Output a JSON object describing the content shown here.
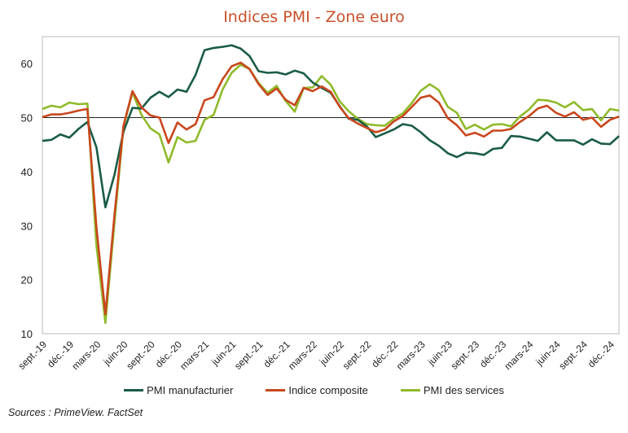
{
  "chart_data": {
    "type": "line",
    "title": "Indices PMI - Zone euro",
    "xlabel": "",
    "ylabel": "",
    "ylim": [
      10,
      65
    ],
    "yticks": [
      10,
      20,
      30,
      40,
      50,
      60
    ],
    "reference_line": 50,
    "grid": false,
    "legend_position": "bottom",
    "x_tick_labels": [
      "sept.-19",
      "déc.-19",
      "mars-20",
      "juin-20",
      "sept.-20",
      "déc.-20",
      "mars-21",
      "juin-21",
      "sept.-21",
      "déc.-21",
      "mars-22",
      "juin-22",
      "sept.-22",
      "déc.-22",
      "mars-23",
      "juin-23",
      "sept.-23",
      "déc.-23",
      "mars-24",
      "juin-24",
      "sept.-24",
      "déc.-24"
    ],
    "x": [
      "2019-09",
      "2019-10",
      "2019-11",
      "2019-12",
      "2020-01",
      "2020-02",
      "2020-03",
      "2020-04",
      "2020-05",
      "2020-06",
      "2020-07",
      "2020-08",
      "2020-09",
      "2020-10",
      "2020-11",
      "2020-12",
      "2021-01",
      "2021-02",
      "2021-03",
      "2021-04",
      "2021-05",
      "2021-06",
      "2021-07",
      "2021-08",
      "2021-09",
      "2021-10",
      "2021-11",
      "2021-12",
      "2022-01",
      "2022-02",
      "2022-03",
      "2022-04",
      "2022-05",
      "2022-06",
      "2022-07",
      "2022-08",
      "2022-09",
      "2022-10",
      "2022-11",
      "2022-12",
      "2023-01",
      "2023-02",
      "2023-03",
      "2023-04",
      "2023-05",
      "2023-06",
      "2023-07",
      "2023-08",
      "2023-09",
      "2023-10",
      "2023-11",
      "2023-12",
      "2024-01",
      "2024-02",
      "2024-03",
      "2024-04",
      "2024-05",
      "2024-06",
      "2024-07",
      "2024-08",
      "2024-09",
      "2024-10",
      "2024-11",
      "2024-12",
      "2025-01"
    ],
    "series": [
      {
        "name": "PMI manufacturier",
        "color": "#1a5c45",
        "values": [
          45.7,
          45.9,
          46.9,
          46.3,
          47.9,
          49.2,
          44.5,
          33.4,
          39.4,
          47.4,
          51.8,
          51.7,
          53.7,
          54.8,
          53.8,
          55.2,
          54.8,
          57.9,
          62.5,
          62.9,
          63.1,
          63.4,
          62.8,
          61.4,
          58.6,
          58.3,
          58.4,
          58.0,
          58.7,
          58.2,
          56.5,
          55.5,
          54.6,
          52.1,
          49.8,
          49.6,
          48.4,
          46.4,
          47.1,
          47.8,
          48.8,
          48.5,
          47.3,
          45.8,
          44.8,
          43.4,
          42.7,
          43.5,
          43.4,
          43.1,
          44.2,
          44.4,
          46.6,
          46.5,
          46.1,
          45.7,
          47.3,
          45.8,
          45.8,
          45.8,
          45.0,
          46.0,
          45.2,
          45.1,
          46.6
        ]
      },
      {
        "name": "Indice composite",
        "color": "#c8471d",
        "values": [
          50.1,
          50.6,
          50.6,
          50.9,
          51.3,
          51.6,
          29.7,
          13.6,
          31.9,
          48.5,
          54.9,
          51.9,
          50.4,
          50.0,
          45.3,
          49.1,
          47.8,
          48.8,
          53.2,
          53.8,
          57.1,
          59.5,
          60.2,
          59.0,
          56.2,
          54.2,
          55.4,
          53.3,
          52.3,
          55.5,
          54.9,
          55.8,
          54.8,
          52.0,
          49.9,
          48.9,
          48.1,
          47.3,
          47.8,
          49.3,
          50.3,
          52.0,
          53.7,
          54.1,
          52.8,
          49.9,
          48.6,
          46.7,
          47.2,
          46.5,
          47.6,
          47.6,
          47.9,
          49.2,
          50.3,
          51.7,
          52.2,
          50.9,
          50.2,
          51.0,
          49.6,
          50.0,
          48.3,
          49.6,
          50.2
        ]
      },
      {
        "name": "PMI des services",
        "color": "#8fba2a",
        "values": [
          51.6,
          52.2,
          51.9,
          52.8,
          52.5,
          52.6,
          26.4,
          12.0,
          30.5,
          48.3,
          54.7,
          50.5,
          48.0,
          46.9,
          41.7,
          46.4,
          45.4,
          45.7,
          49.6,
          50.5,
          55.2,
          58.3,
          59.8,
          59.0,
          56.4,
          54.6,
          55.9,
          53.1,
          51.1,
          55.5,
          55.6,
          57.7,
          56.1,
          53.0,
          51.2,
          49.8,
          48.8,
          48.6,
          48.5,
          49.8,
          50.8,
          52.7,
          55.0,
          56.2,
          55.1,
          52.0,
          50.9,
          47.9,
          48.7,
          47.8,
          48.7,
          48.8,
          48.4,
          50.2,
          51.5,
          53.3,
          53.2,
          52.8,
          51.9,
          52.9,
          51.4,
          51.6,
          49.5,
          51.6,
          51.3
        ]
      }
    ]
  },
  "source": "Sources : PrimeView. FactSet"
}
